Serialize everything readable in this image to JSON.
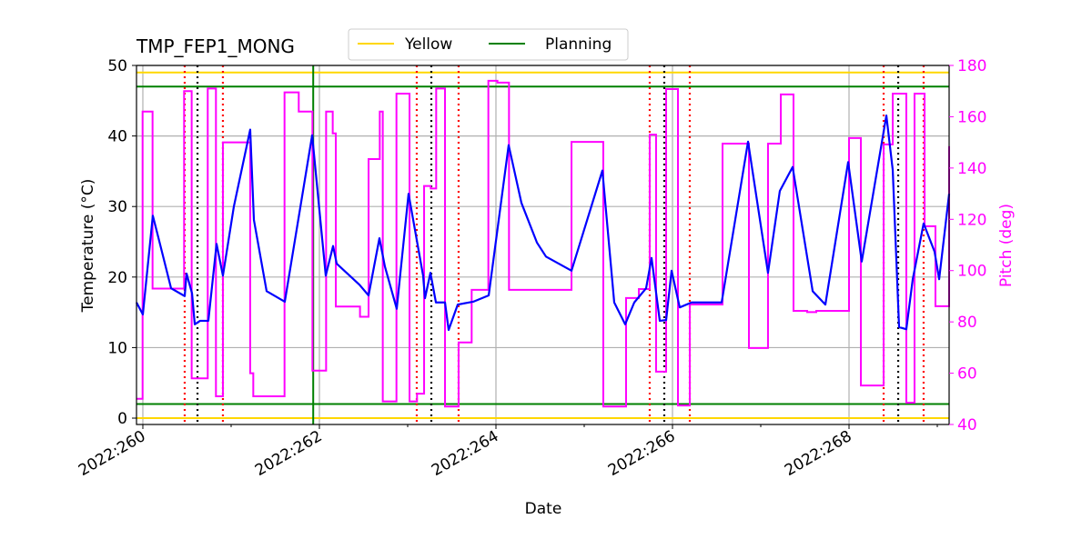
{
  "chart_data": {
    "type": "line",
    "title": "TMP_FEP1_MONG",
    "xlabel": "Date",
    "ylabel": "Temperature (°C)",
    "y2label": "Pitch (deg)",
    "xlim": [
      259.928,
      269.134
    ],
    "ylim": [
      -0.9,
      50
    ],
    "y2lim": [
      40,
      180
    ],
    "x_ticks": [
      {
        "v": 260,
        "label": "2022:260"
      },
      {
        "v": 262,
        "label": "2022:262"
      },
      {
        "v": 264,
        "label": "2022:264"
      },
      {
        "v": 266,
        "label": "2022:266"
      },
      {
        "v": 268,
        "label": "2022:268"
      }
    ],
    "x_minor_ticks": [
      261,
      263,
      265,
      267,
      269
    ],
    "y_ticks": [
      0,
      10,
      20,
      30,
      40,
      50
    ],
    "y2_ticks": [
      40,
      60,
      80,
      100,
      120,
      140,
      160,
      180
    ],
    "grid": true,
    "legend": {
      "placement": "top-center",
      "entries": [
        {
          "name": "Yellow",
          "color": "#ffd700"
        },
        {
          "name": "Planning",
          "color": "#008000"
        }
      ]
    },
    "colors": {
      "temperature": "#0000ff",
      "pitch": "#ff00ff",
      "yellow": "#ffd700",
      "planning": "#008000",
      "red_marker": "#ff0000",
      "black_marker": "#000000",
      "grid": "#b0b0b0",
      "y2_axis": "#ff00ff"
    },
    "limits": {
      "yellow": [
        0,
        49
      ],
      "planning": [
        2,
        47
      ]
    },
    "planning_vertical": [
      261.93
    ],
    "red_markers": [
      260.474,
      260.907,
      263.103,
      263.577,
      265.742,
      266.196,
      268.392,
      268.845
    ],
    "black_markers": [
      260.619,
      263.268,
      265.907,
      268.557
    ],
    "temperature": [
      [
        259.928,
        16.4
      ],
      [
        260.0,
        14.7
      ],
      [
        260.113,
        28.7
      ],
      [
        260.206,
        24.1
      ],
      [
        260.32,
        18.4
      ],
      [
        260.474,
        17.3
      ],
      [
        260.495,
        20.5
      ],
      [
        260.557,
        17.7
      ],
      [
        260.588,
        13.3
      ],
      [
        260.649,
        13.8
      ],
      [
        260.742,
        13.8
      ],
      [
        260.835,
        24.7
      ],
      [
        260.907,
        20.2
      ],
      [
        261.031,
        30.0
      ],
      [
        261.216,
        40.9
      ],
      [
        261.258,
        28.1
      ],
      [
        261.402,
        18.0
      ],
      [
        261.608,
        16.5
      ],
      [
        261.918,
        40.1
      ],
      [
        262.072,
        20.2
      ],
      [
        262.155,
        24.4
      ],
      [
        262.196,
        21.9
      ],
      [
        262.454,
        18.9
      ],
      [
        262.557,
        17.4
      ],
      [
        262.68,
        25.5
      ],
      [
        262.742,
        21.5
      ],
      [
        262.876,
        15.5
      ],
      [
        263.01,
        31.8
      ],
      [
        263.175,
        20.2
      ],
      [
        263.196,
        17.0
      ],
      [
        263.258,
        20.6
      ],
      [
        263.32,
        16.4
      ],
      [
        263.423,
        16.4
      ],
      [
        263.464,
        12.5
      ],
      [
        263.567,
        16.1
      ],
      [
        263.742,
        16.5
      ],
      [
        263.918,
        17.4
      ],
      [
        264.144,
        38.7
      ],
      [
        264.289,
        30.5
      ],
      [
        264.464,
        24.9
      ],
      [
        264.567,
        22.9
      ],
      [
        264.856,
        20.9
      ],
      [
        265.206,
        35.1
      ],
      [
        265.34,
        16.4
      ],
      [
        265.464,
        13.3
      ],
      [
        265.567,
        16.4
      ],
      [
        265.701,
        18.4
      ],
      [
        265.763,
        22.7
      ],
      [
        265.856,
        13.8
      ],
      [
        265.928,
        13.9
      ],
      [
        265.99,
        20.9
      ],
      [
        266.082,
        15.7
      ],
      [
        266.216,
        16.4
      ],
      [
        266.557,
        16.4
      ],
      [
        266.856,
        39.2
      ],
      [
        267.082,
        20.6
      ],
      [
        267.216,
        32.2
      ],
      [
        267.361,
        35.6
      ],
      [
        267.588,
        18.0
      ],
      [
        267.732,
        16.1
      ],
      [
        267.99,
        36.3
      ],
      [
        268.144,
        22.2
      ],
      [
        268.423,
        42.9
      ],
      [
        268.495,
        35.2
      ],
      [
        268.567,
        12.9
      ],
      [
        268.649,
        12.6
      ],
      [
        268.722,
        19.7
      ],
      [
        268.845,
        27.6
      ],
      [
        268.969,
        23.6
      ],
      [
        269.021,
        19.7
      ],
      [
        269.134,
        31.8
      ]
    ],
    "pitch": [
      [
        259.928,
        50
      ],
      [
        259.997,
        162
      ],
      [
        260.11,
        93
      ],
      [
        260.467,
        170
      ],
      [
        260.553,
        58
      ],
      [
        260.735,
        171
      ],
      [
        260.828,
        51
      ],
      [
        260.907,
        150
      ],
      [
        261.216,
        60
      ],
      [
        261.251,
        51
      ],
      [
        261.605,
        169.5
      ],
      [
        261.766,
        162
      ],
      [
        261.921,
        61
      ],
      [
        262.076,
        162
      ],
      [
        262.151,
        153.5
      ],
      [
        262.186,
        86
      ],
      [
        262.46,
        82
      ],
      [
        262.557,
        143.5
      ],
      [
        262.684,
        162
      ],
      [
        262.718,
        49
      ],
      [
        262.873,
        169
      ],
      [
        263.021,
        49
      ],
      [
        263.106,
        52
      ],
      [
        263.186,
        133
      ],
      [
        263.261,
        132
      ],
      [
        263.323,
        171
      ],
      [
        263.423,
        47
      ],
      [
        263.577,
        72
      ],
      [
        263.725,
        92.5
      ],
      [
        263.914,
        174
      ],
      [
        264.017,
        173.3
      ],
      [
        264.148,
        92.5
      ],
      [
        264.856,
        150.2
      ],
      [
        265.216,
        47
      ],
      [
        265.474,
        89.3
      ],
      [
        265.619,
        92.8
      ],
      [
        265.742,
        153
      ],
      [
        265.814,
        60.6
      ],
      [
        265.928,
        170.8
      ],
      [
        266.062,
        47.4
      ],
      [
        266.196,
        86.8
      ],
      [
        266.567,
        149.5
      ],
      [
        266.866,
        69.8
      ],
      [
        267.082,
        149.5
      ],
      [
        267.227,
        168.7
      ],
      [
        267.371,
        84.3
      ],
      [
        267.526,
        83.8
      ],
      [
        267.629,
        84.3
      ],
      [
        268.0,
        151.7
      ],
      [
        268.134,
        55.2
      ],
      [
        268.392,
        149.2
      ],
      [
        268.495,
        169
      ],
      [
        268.649,
        48.5
      ],
      [
        268.742,
        169
      ],
      [
        268.856,
        117.3
      ],
      [
        268.979,
        86.1
      ],
      [
        269.134,
        148.5
      ]
    ]
  }
}
